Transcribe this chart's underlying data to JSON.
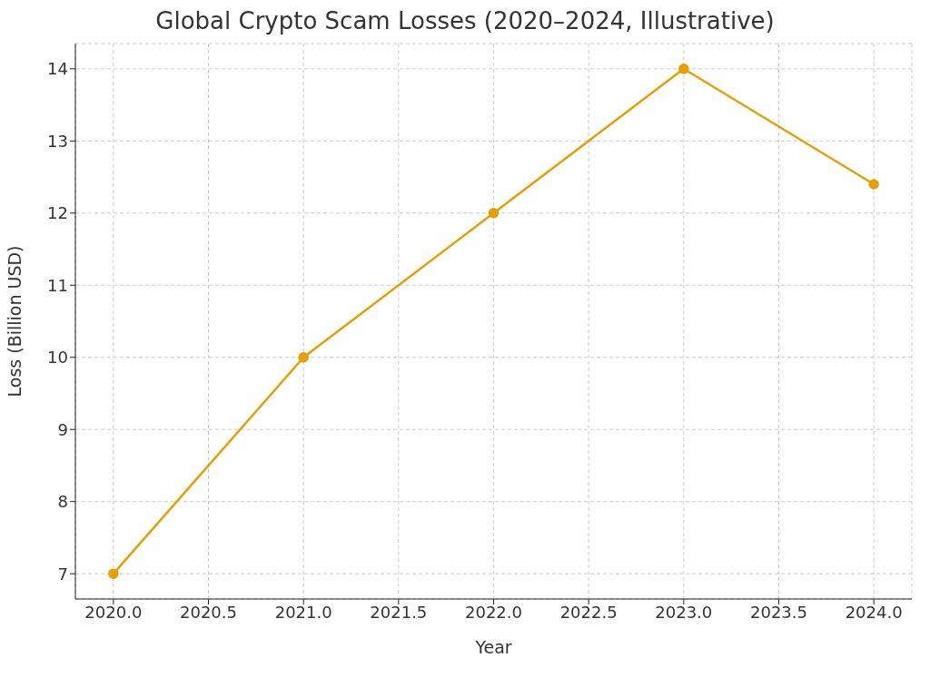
{
  "chart_data": {
    "type": "line",
    "title": "Global Crypto Scam Losses (2020–2024, Illustrative)",
    "xlabel": "Year",
    "ylabel": "Loss (Billion USD)",
    "x": [
      2020,
      2021,
      2022,
      2023,
      2024
    ],
    "series": [
      {
        "color": "#e69f00",
        "values": [
          7,
          10,
          12,
          14,
          12.4
        ]
      }
    ],
    "xlim": [
      2019.8,
      2024.2
    ],
    "xticks": [
      {
        "value": 2020,
        "label": "2020.0"
      },
      {
        "value": 2020.5,
        "label": "2020.5"
      },
      {
        "value": 2021,
        "label": "2021.0"
      },
      {
        "value": 2021.5,
        "label": "2021.5"
      },
      {
        "value": 2022,
        "label": "2022.0"
      },
      {
        "value": 2022.5,
        "label": "2022.5"
      },
      {
        "value": 2023,
        "label": "2023.0"
      },
      {
        "value": 2023.5,
        "label": "2023.5"
      },
      {
        "value": 2024,
        "label": "2024.0"
      }
    ],
    "ylim": [
      6.65,
      14.35
    ],
    "yticks": [
      7,
      8,
      9,
      10,
      11,
      12,
      13,
      14
    ],
    "grid": true,
    "marker": "circle",
    "line_style": "solid",
    "legend": false
  }
}
